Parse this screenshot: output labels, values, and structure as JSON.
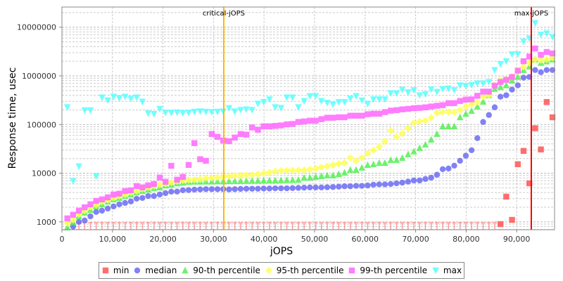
{
  "chart_data": {
    "type": "scatter",
    "xlabel": "jOPS",
    "ylabel": "Response time, usec",
    "xlim": [
      0,
      97500
    ],
    "ylim": [
      690,
      26000000
    ],
    "yscale": "log",
    "grid": true,
    "legend_position": "bottom",
    "x_ticks": [
      0,
      10000,
      20000,
      30000,
      40000,
      50000,
      60000,
      70000,
      80000,
      90000
    ],
    "x_tick_labels": [
      "0",
      "10,000",
      "20,000",
      "30,000",
      "40,000",
      "50,000",
      "60,000",
      "70,000",
      "80,000",
      "90,000"
    ],
    "y_ticks": [
      1000,
      10000,
      100000,
      1000000,
      10000000
    ],
    "y_tick_labels": [
      "1000",
      "10000",
      "100000",
      "1000000",
      "10000000"
    ],
    "jops_start": 1070,
    "jops_step": 1143,
    "annotations": [
      {
        "label": "critical-jOPS",
        "x": 32030,
        "color": "#ffb800"
      },
      {
        "label": "max-jOPS",
        "x": 92900,
        "color": "#ff0000"
      }
    ],
    "series": [
      {
        "name": "min",
        "color": "#ff5555",
        "marker": "square",
        "note_null": "below axis",
        "values": [
          null,
          null,
          null,
          null,
          null,
          null,
          null,
          null,
          null,
          null,
          null,
          null,
          null,
          null,
          null,
          null,
          null,
          null,
          null,
          null,
          null,
          null,
          null,
          null,
          null,
          null,
          null,
          null,
          null,
          null,
          null,
          null,
          null,
          null,
          null,
          null,
          null,
          null,
          null,
          null,
          null,
          null,
          null,
          null,
          null,
          null,
          null,
          null,
          null,
          null,
          null,
          null,
          null,
          null,
          null,
          null,
          null,
          null,
          null,
          null,
          null,
          null,
          null,
          null,
          null,
          null,
          null,
          null,
          null,
          null,
          null,
          null,
          null,
          null,
          null,
          900,
          3300,
          1100,
          15300,
          28700,
          6200,
          84000,
          30800,
          290000,
          141000
        ]
      },
      {
        "name": "median",
        "color": "#6b6bf5",
        "marker": "circle",
        "values": [
          null,
          800,
          1000,
          1070,
          1300,
          1600,
          1700,
          1880,
          2080,
          2300,
          2450,
          2630,
          3000,
          3100,
          3400,
          3400,
          3650,
          3900,
          4180,
          4200,
          4470,
          4500,
          4600,
          4650,
          4700,
          4700,
          4700,
          4700,
          4650,
          4700,
          4750,
          4800,
          4800,
          4800,
          4850,
          4850,
          4900,
          4900,
          4900,
          4950,
          5000,
          5050,
          5100,
          5100,
          5100,
          5150,
          5200,
          5300,
          5400,
          5400,
          5500,
          5500,
          5600,
          5800,
          5900,
          5900,
          6000,
          6200,
          6400,
          6700,
          7100,
          7100,
          7600,
          8100,
          9300,
          12100,
          12500,
          14300,
          18000,
          22900,
          29700,
          52500,
          113000,
          157000,
          226000,
          373000,
          400000,
          522000,
          640000,
          920000,
          950000,
          1320000,
          1190000,
          1320000,
          1320000
        ]
      },
      {
        "name": "90-th percentile",
        "color": "#55ee55",
        "marker": "triangle-up",
        "values": [
          770,
          980,
          1300,
          1550,
          1760,
          2080,
          2300,
          2600,
          2900,
          3100,
          3400,
          3650,
          4050,
          4300,
          4600,
          4950,
          5100,
          5600,
          5800,
          6200,
          6400,
          6650,
          6700,
          6700,
          6750,
          6750,
          6800,
          6800,
          6850,
          6900,
          6900,
          6950,
          7000,
          7000,
          7050,
          7100,
          7100,
          7150,
          7200,
          7250,
          7300,
          8100,
          8100,
          8400,
          8700,
          9000,
          9000,
          9600,
          10300,
          11700,
          11700,
          13000,
          14700,
          15300,
          16300,
          16300,
          18700,
          18700,
          20600,
          24400,
          28000,
          33000,
          38700,
          49000,
          64000,
          92000,
          92000,
          92000,
          141000,
          167000,
          190000,
          235000,
          295000,
          400000,
          540000,
          590000,
          640000,
          800000,
          950000,
          1320000,
          1560000,
          2170000,
          1850000,
          1980000,
          2170000
        ]
      },
      {
        "name": "95-th percentile",
        "color": "#ffff55",
        "marker": "diamond",
        "values": [
          940,
          1100,
          1440,
          1700,
          2000,
          2220,
          2600,
          2800,
          3100,
          3400,
          3650,
          4050,
          4300,
          4750,
          5100,
          5450,
          5800,
          6050,
          6450,
          6850,
          7100,
          7200,
          7300,
          7500,
          7900,
          8000,
          8150,
          8400,
          8700,
          8850,
          9000,
          9150,
          9300,
          9600,
          9900,
          10400,
          10900,
          11300,
          11400,
          11500,
          11500,
          11600,
          11900,
          12500,
          13300,
          13900,
          14800,
          15700,
          16300,
          20800,
          18000,
          20800,
          25500,
          29800,
          35000,
          45000,
          75000,
          56000,
          66000,
          84000,
          108000,
          116000,
          120000,
          138000,
          173000,
          180000,
          180000,
          180000,
          199000,
          235000,
          260000,
          290000,
          373000,
          400000,
          640000,
          810000,
          840000,
          950000,
          1240000,
          1530000,
          1850000,
          2170000,
          2100000,
          2170000,
          2350000
        ]
      },
      {
        "name": "99-th percentile",
        "color": "#ff66ff",
        "marker": "square",
        "values": [
          1180,
          1400,
          1700,
          2000,
          2300,
          2700,
          2900,
          3200,
          3650,
          3800,
          4300,
          4450,
          5450,
          5100,
          5650,
          6000,
          8150,
          6650,
          14200,
          7350,
          8400,
          14800,
          41500,
          19400,
          18000,
          64000,
          56000,
          47000,
          45500,
          54000,
          64000,
          62000,
          87000,
          78000,
          92000,
          92000,
          94000,
          96000,
          101000,
          103000,
          113000,
          116000,
          120000,
          120000,
          129000,
          138000,
          138000,
          141000,
          141000,
          152000,
          152000,
          152000,
          163000,
          167000,
          167000,
          180000,
          193000,
          198000,
          205000,
          210000,
          217000,
          220000,
          226000,
          235000,
          243000,
          250000,
          275000,
          275000,
          305000,
          325000,
          330000,
          390000,
          475000,
          475000,
          630000,
          750000,
          830000,
          950000,
          1280000,
          2000000,
          2500000,
          3650000,
          2700000,
          3100000,
          2900000
        ]
      },
      {
        "name": "max",
        "color": "#55ffff",
        "marker": "triangle-down",
        "values": [
          227000,
          6900,
          13900,
          197000,
          197000,
          8700,
          360000,
          315000,
          375000,
          350000,
          375000,
          340000,
          360000,
          295000,
          170000,
          165000,
          210000,
          175000,
          175000,
          178000,
          172000,
          175000,
          183000,
          187000,
          183000,
          180000,
          183000,
          186000,
          218000,
          186000,
          200000,
          205000,
          200000,
          268000,
          290000,
          330000,
          227000,
          220000,
          360000,
          360000,
          227000,
          305000,
          385000,
          385000,
          305000,
          280000,
          260000,
          290000,
          290000,
          340000,
          385000,
          315000,
          268000,
          330000,
          330000,
          330000,
          440000,
          440000,
          520000,
          460000,
          510000,
          400000,
          420000,
          530000,
          470000,
          540000,
          550000,
          510000,
          640000,
          620000,
          650000,
          700000,
          700000,
          750000,
          1320000,
          1750000,
          2000000,
          2800000,
          2800000,
          5100000,
          5900000,
          12200000,
          7000000,
          7500000,
          6300000
        ]
      }
    ]
  }
}
